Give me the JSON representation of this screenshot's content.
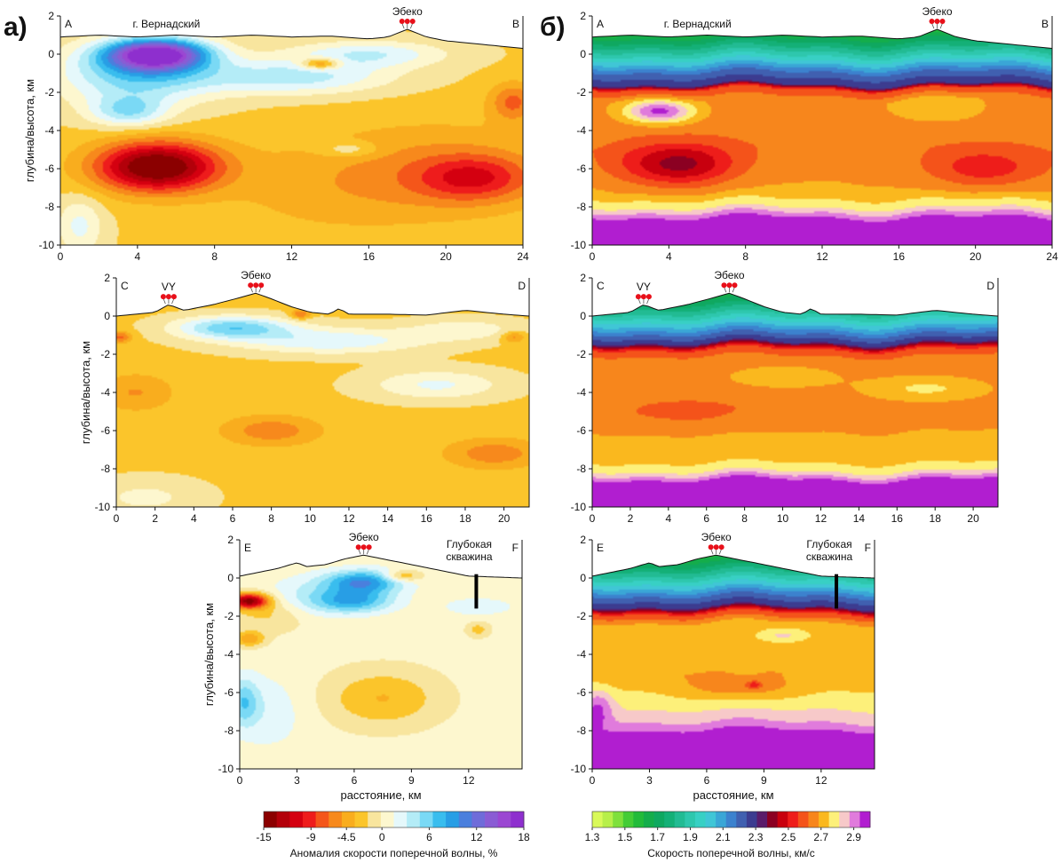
{
  "figure": {
    "panel_letters": [
      "а)",
      "б)"
    ],
    "place_labels": {
      "vernadsky": "г. Вернадский",
      "ebeko": "Эбеко",
      "vy": "VY",
      "deep_well": [
        "Глубокая",
        "скважина"
      ]
    },
    "ylabel": "глубина/высота, км",
    "xlabel": "расстояние, км"
  },
  "chart_data": [
    {
      "id": "a-AB",
      "type": "heatmap",
      "quantity": "anomaly",
      "corner_labels": [
        "A",
        "B"
      ],
      "xlim": [
        0,
        24
      ],
      "ylim": [
        -10,
        2
      ],
      "xticks": [
        0,
        4,
        8,
        12,
        16,
        20,
        24
      ],
      "yticks": [
        2,
        0,
        -2,
        -4,
        -6,
        -8,
        -10
      ],
      "ylabel": "глубина/высота, км",
      "xlabel": "",
      "places": [
        {
          "label": "г. Вернадский",
          "x": 5.5
        },
        {
          "label": "Эбеко",
          "x": 18
        }
      ],
      "topography": [
        [
          0,
          0.9
        ],
        [
          2,
          1.0
        ],
        [
          4,
          0.9
        ],
        [
          6,
          1.0
        ],
        [
          8,
          0.9
        ],
        [
          10,
          1.0
        ],
        [
          12,
          0.9
        ],
        [
          14,
          0.95
        ],
        [
          16,
          0.8
        ],
        [
          17,
          0.9
        ],
        [
          18,
          1.3
        ],
        [
          19,
          0.9
        ],
        [
          20,
          0.7
        ],
        [
          22,
          0.5
        ],
        [
          24,
          0.3
        ]
      ],
      "background": -2,
      "blobs": [
        {
          "x": 5,
          "y": -5.9,
          "sx": 3.2,
          "sy": 1.3,
          "v": -14
        },
        {
          "x": 21.5,
          "y": -6.5,
          "sx": 3,
          "sy": 1.2,
          "v": -6
        },
        {
          "x": 20,
          "y": -6,
          "sx": 6,
          "sy": 2.5,
          "v": -3
        },
        {
          "x": 14,
          "y": -7,
          "sx": 6,
          "sy": 2.5,
          "v": -2
        },
        {
          "x": 5,
          "y": 0,
          "sx": 2.6,
          "sy": 0.8,
          "v": 18
        },
        {
          "x": 4,
          "y": -1,
          "sx": 4,
          "sy": 1.6,
          "v": 8
        },
        {
          "x": 12,
          "y": -1.2,
          "sx": 5,
          "sy": 0.9,
          "v": 6
        },
        {
          "x": 16,
          "y": 0,
          "sx": 4,
          "sy": 0.7,
          "v": 5
        },
        {
          "x": 3.5,
          "y": -3,
          "sx": 2,
          "sy": 0.8,
          "v": 6
        },
        {
          "x": 13.5,
          "y": -0.5,
          "sx": 1,
          "sy": 0.3,
          "v": -7
        },
        {
          "x": 23.5,
          "y": -2.5,
          "sx": 1.2,
          "sy": 1,
          "v": -5
        },
        {
          "x": 15,
          "y": -5,
          "sx": 1.5,
          "sy": 0.4,
          "v": 3
        },
        {
          "x": 1,
          "y": -9,
          "sx": 1.2,
          "sy": 1.5,
          "v": 4
        }
      ]
    },
    {
      "id": "b-AB",
      "type": "heatmap",
      "quantity": "velocity",
      "corner_labels": [
        "A",
        "B"
      ],
      "xlim": [
        0,
        24
      ],
      "ylim": [
        -10,
        2
      ],
      "xticks": [
        0,
        4,
        8,
        12,
        16,
        20,
        24
      ],
      "yticks": [
        2,
        0,
        -2,
        -4,
        -6,
        -8,
        -10
      ],
      "ylabel": "",
      "xlabel": "",
      "places": [
        {
          "label": "г. Вернадский",
          "x": 5.5
        },
        {
          "label": "Эбеко",
          "x": 18
        }
      ],
      "topography": [
        [
          0,
          0.9
        ],
        [
          2,
          1.0
        ],
        [
          4,
          0.9
        ],
        [
          6,
          1.0
        ],
        [
          8,
          0.9
        ],
        [
          10,
          1.0
        ],
        [
          12,
          0.9
        ],
        [
          14,
          0.95
        ],
        [
          16,
          0.8
        ],
        [
          17,
          0.9
        ],
        [
          18,
          1.3
        ],
        [
          19,
          0.9
        ],
        [
          20,
          0.7
        ],
        [
          22,
          0.5
        ],
        [
          24,
          0.3
        ]
      ],
      "layers": [
        [
          1.5,
          1.5
        ],
        [
          0,
          1.9
        ],
        [
          -1,
          2.2
        ],
        [
          -1.6,
          2.3
        ],
        [
          -1.8,
          2.55
        ],
        [
          -2.4,
          2.66
        ],
        [
          -5,
          2.64
        ],
        [
          -7.2,
          2.7
        ],
        [
          -8,
          2.8
        ],
        [
          -8.6,
          2.95
        ],
        [
          -10,
          2.95
        ]
      ],
      "blobs": [
        {
          "x": 4.5,
          "y": -5.8,
          "sx": 3,
          "sy": 1.1,
          "v": -0.25
        },
        {
          "x": 20.5,
          "y": -6,
          "sx": 3,
          "sy": 1,
          "v": -0.15
        },
        {
          "x": 3.5,
          "y": -3,
          "sx": 1.8,
          "sy": 0.6,
          "v": 0.3
        },
        {
          "x": 18,
          "y": -2.8,
          "sx": 2.5,
          "sy": 0.8,
          "v": 0.08
        }
      ]
    },
    {
      "id": "a-CD",
      "type": "heatmap",
      "quantity": "anomaly",
      "corner_labels": [
        "C",
        "D"
      ],
      "xlim": [
        0,
        21.3
      ],
      "ylim": [
        -10,
        2
      ],
      "xticks": [
        0,
        2,
        4,
        6,
        8,
        10,
        12,
        14,
        16,
        18,
        20
      ],
      "yticks": [
        2,
        0,
        -2,
        -4,
        -6,
        -8,
        -10
      ],
      "ylabel": "глубина/высота, км",
      "xlabel": "",
      "places": [
        {
          "label": "VY",
          "x": 2.7
        },
        {
          "label": "Эбеко",
          "x": 7.2
        }
      ],
      "topography": [
        [
          0,
          0
        ],
        [
          1,
          0.1
        ],
        [
          2,
          0.2
        ],
        [
          2.7,
          0.6
        ],
        [
          3.5,
          0.3
        ],
        [
          5,
          0.6
        ],
        [
          6.5,
          1.0
        ],
        [
          7.2,
          1.2
        ],
        [
          8,
          0.9
        ],
        [
          9,
          0.5
        ],
        [
          10,
          0.2
        ],
        [
          11,
          0.1
        ],
        [
          11.5,
          0.4
        ],
        [
          12,
          0.1
        ],
        [
          14,
          0.1
        ],
        [
          16,
          0.05
        ],
        [
          18,
          0.3
        ],
        [
          20,
          0.1
        ],
        [
          21.3,
          0
        ]
      ],
      "background": -2.2,
      "blobs": [
        {
          "x": 6,
          "y": -0.6,
          "sx": 3,
          "sy": 0.6,
          "v": 8
        },
        {
          "x": 11,
          "y": -1.3,
          "sx": 5,
          "sy": 0.7,
          "v": 5
        },
        {
          "x": 18,
          "y": -0.7,
          "sx": 3,
          "sy": 0.6,
          "v": 3
        },
        {
          "x": 16.5,
          "y": -3.6,
          "sx": 3.5,
          "sy": 0.8,
          "v": 4
        },
        {
          "x": 8,
          "y": -6,
          "sx": 2.5,
          "sy": 0.8,
          "v": -4
        },
        {
          "x": 19.5,
          "y": -7.2,
          "sx": 2.5,
          "sy": 0.8,
          "v": -4
        },
        {
          "x": 1,
          "y": -4,
          "sx": 2,
          "sy": 1,
          "v": -3
        },
        {
          "x": 1.5,
          "y": -9.5,
          "sx": 3,
          "sy": 1,
          "v": 2.5
        },
        {
          "x": 0.2,
          "y": -1.1,
          "sx": 0.6,
          "sy": 0.3,
          "v": -5
        },
        {
          "x": 20.5,
          "y": -1.1,
          "sx": 0.6,
          "sy": 0.3,
          "v": -4
        },
        {
          "x": 9.5,
          "y": 0.1,
          "sx": 0.5,
          "sy": 0.25,
          "v": -5
        }
      ]
    },
    {
      "id": "b-CD",
      "type": "heatmap",
      "quantity": "velocity",
      "corner_labels": [
        "C",
        "D"
      ],
      "xlim": [
        0,
        21.3
      ],
      "ylim": [
        -10,
        2
      ],
      "xticks": [
        0,
        2,
        4,
        6,
        8,
        10,
        12,
        14,
        16,
        18,
        20
      ],
      "yticks": [
        2,
        0,
        -2,
        -4,
        -6,
        -8,
        -10
      ],
      "ylabel": "",
      "xlabel": "",
      "places": [
        {
          "label": "VY",
          "x": 2.7
        },
        {
          "label": "Эбеко",
          "x": 7.2
        }
      ],
      "topography": [
        [
          0,
          0
        ],
        [
          1,
          0.1
        ],
        [
          2,
          0.2
        ],
        [
          2.7,
          0.6
        ],
        [
          3.5,
          0.3
        ],
        [
          5,
          0.6
        ],
        [
          6.5,
          1.0
        ],
        [
          7.2,
          1.2
        ],
        [
          8,
          0.9
        ],
        [
          9,
          0.5
        ],
        [
          10,
          0.2
        ],
        [
          11,
          0.1
        ],
        [
          11.5,
          0.4
        ],
        [
          12,
          0.1
        ],
        [
          14,
          0.1
        ],
        [
          16,
          0.05
        ],
        [
          18,
          0.3
        ],
        [
          20,
          0.1
        ],
        [
          21.3,
          0
        ]
      ],
      "layers": [
        [
          1.5,
          1.5
        ],
        [
          0,
          1.9
        ],
        [
          -1,
          2.2
        ],
        [
          -1.4,
          2.3
        ],
        [
          -1.7,
          2.55
        ],
        [
          -2.3,
          2.66
        ],
        [
          -5,
          2.66
        ],
        [
          -7.5,
          2.72
        ],
        [
          -8.2,
          2.82
        ],
        [
          -8.6,
          2.95
        ],
        [
          -10,
          2.95
        ]
      ],
      "blobs": [
        {
          "x": 17.5,
          "y": -3.8,
          "sx": 3,
          "sy": 0.6,
          "v": 0.1
        },
        {
          "x": 10,
          "y": -3.2,
          "sx": 3,
          "sy": 0.6,
          "v": 0.06
        },
        {
          "x": 5,
          "y": -5,
          "sx": 4,
          "sy": 0.8,
          "v": -0.06
        }
      ]
    },
    {
      "id": "a-EF",
      "type": "heatmap",
      "quantity": "anomaly",
      "corner_labels": [
        "E",
        "F"
      ],
      "xlim": [
        0,
        14.8
      ],
      "ylim": [
        -10,
        2
      ],
      "xticks": [
        0,
        3,
        6,
        9,
        12
      ],
      "yticks": [
        2,
        0,
        -2,
        -4,
        -6,
        -8,
        -10
      ],
      "ylabel": "глубина/высота, км",
      "xlabel": "расстояние, км",
      "places": [
        {
          "label": "Эбеко",
          "x": 6.5
        }
      ],
      "well": {
        "x": 12.4,
        "top": 0.2,
        "bottom": -1.6
      },
      "topography": [
        [
          0,
          0.1
        ],
        [
          1,
          0.3
        ],
        [
          2,
          0.5
        ],
        [
          3,
          0.8
        ],
        [
          3.5,
          0.6
        ],
        [
          4.5,
          0.7
        ],
        [
          5.5,
          1.0
        ],
        [
          6.5,
          1.2
        ],
        [
          7.5,
          1.0
        ],
        [
          8.5,
          0.8
        ],
        [
          10,
          0.5
        ],
        [
          11,
          0.3
        ],
        [
          12,
          0.1
        ],
        [
          14.8,
          0
        ]
      ],
      "background": 0.5,
      "blobs": [
        {
          "x": 0.5,
          "y": -1.2,
          "sx": 1,
          "sy": 0.4,
          "v": -14
        },
        {
          "x": 1.5,
          "y": -1.8,
          "sx": 2,
          "sy": 1,
          "v": -3
        },
        {
          "x": 6.5,
          "y": -0.2,
          "sx": 2,
          "sy": 0.6,
          "v": 9
        },
        {
          "x": 6,
          "y": -1.2,
          "sx": 2,
          "sy": 0.6,
          "v": 7
        },
        {
          "x": 3.5,
          "y": -1,
          "sx": 2.5,
          "sy": 1,
          "v": 3
        },
        {
          "x": 7.5,
          "y": -6.3,
          "sx": 3,
          "sy": 1.5,
          "v": -4
        },
        {
          "x": 0.2,
          "y": -6.5,
          "sx": 0.8,
          "sy": 1.2,
          "v": 5
        },
        {
          "x": 1.5,
          "y": -7,
          "sx": 2,
          "sy": 2,
          "v": 2
        },
        {
          "x": 12.5,
          "y": -1.5,
          "sx": 2,
          "sy": 0.5,
          "v": 2
        },
        {
          "x": 8.5,
          "y": 0.1,
          "sx": 1,
          "sy": 0.3,
          "v": -5
        },
        {
          "x": 12.5,
          "y": -2.7,
          "sx": 0.6,
          "sy": 0.4,
          "v": -3
        },
        {
          "x": 0.5,
          "y": -3.2,
          "sx": 0.8,
          "sy": 0.4,
          "v": -5
        }
      ]
    },
    {
      "id": "b-EF",
      "type": "heatmap",
      "quantity": "velocity",
      "corner_labels": [
        "E",
        "F"
      ],
      "xlim": [
        0,
        14.8
      ],
      "ylim": [
        -10,
        2
      ],
      "xticks": [
        0,
        3,
        6,
        9,
        12
      ],
      "yticks": [
        2,
        0,
        -2,
        -4,
        -6,
        -8,
        -10
      ],
      "ylabel": "",
      "xlabel": "расстояние, км",
      "places": [
        {
          "label": "Эбеко",
          "x": 6.5
        }
      ],
      "well": {
        "x": 12.8,
        "top": 0.2,
        "bottom": -1.6
      },
      "topography": [
        [
          0,
          0.1
        ],
        [
          1,
          0.3
        ],
        [
          2,
          0.5
        ],
        [
          3,
          0.8
        ],
        [
          3.5,
          0.6
        ],
        [
          4.5,
          0.7
        ],
        [
          5.5,
          1.0
        ],
        [
          6.5,
          1.2
        ],
        [
          7.5,
          1.0
        ],
        [
          8.5,
          0.8
        ],
        [
          10,
          0.5
        ],
        [
          11,
          0.3
        ],
        [
          12,
          0.1
        ],
        [
          14.8,
          0
        ]
      ],
      "layers": [
        [
          1.5,
          1.5
        ],
        [
          0,
          1.9
        ],
        [
          -1,
          2.2
        ],
        [
          -1.5,
          2.3
        ],
        [
          -1.8,
          2.55
        ],
        [
          -2.4,
          2.7
        ],
        [
          -5,
          2.7
        ],
        [
          -7,
          2.82
        ],
        [
          -7.8,
          2.9
        ],
        [
          -8,
          2.95
        ],
        [
          -10,
          2.95
        ]
      ],
      "blobs": [
        {
          "x": 7.8,
          "y": -5.8,
          "sx": 3,
          "sy": 0.7,
          "v": -0.1
        },
        {
          "x": 8.5,
          "y": -5.6,
          "sx": 0.4,
          "sy": 0.2,
          "v": -0.15
        },
        {
          "x": 10,
          "y": -3,
          "sx": 1.5,
          "sy": 0.4,
          "v": 0.12
        },
        {
          "x": 0.3,
          "y": -6.8,
          "sx": 0.8,
          "sy": 1,
          "v": 0.15
        }
      ]
    }
  ],
  "colorbars": {
    "anomaly": {
      "title": "Аномалия скорости поперечной волны, %",
      "ticks": [
        "-15",
        "-9",
        "-4.5",
        "0",
        "6",
        "12",
        "18"
      ],
      "tick_values": [
        -15,
        -9,
        -4.5,
        0,
        6,
        12,
        18
      ],
      "range": [
        -15,
        18
      ],
      "colors": [
        "#8b0000",
        "#b3000a",
        "#d40010",
        "#ee1c1c",
        "#f4561a",
        "#f7891c",
        "#f9ad1e",
        "#fbc52b",
        "#f8e59e",
        "#fdf7cf",
        "#e5f8fb",
        "#b4ecf7",
        "#7ad9f5",
        "#39bdee",
        "#289ee5",
        "#4a7fdd",
        "#6f6cd9",
        "#8a5cd4",
        "#9b47d2",
        "#8e2fce"
      ]
    },
    "velocity": {
      "title": "Скорость поперечной волны, км/с",
      "ticks": [
        "1.3",
        "1.5",
        "1.7",
        "1.9",
        "2.1",
        "2.3",
        "2.5",
        "2.7",
        "2.9"
      ],
      "tick_values": [
        1.3,
        1.5,
        1.7,
        1.9,
        2.1,
        2.3,
        2.5,
        2.7,
        2.9
      ],
      "range": [
        1.3,
        3.0
      ],
      "colors": [
        "#d9f95a",
        "#b7ef4a",
        "#7fe03c",
        "#44cc36",
        "#22bb3a",
        "#14ad4b",
        "#0fa860",
        "#14b077",
        "#22bb93",
        "#2ec7ad",
        "#38d0c4",
        "#40c6d6",
        "#3aa6d6",
        "#3c82ce",
        "#4060b0",
        "#3c3c90",
        "#5a1c6a",
        "#8b0022",
        "#c8000e",
        "#ee1d1a",
        "#f4531a",
        "#f7861c",
        "#fab81e",
        "#fdf07a",
        "#f7c9c9",
        "#e07bdc",
        "#b11ed0"
      ]
    }
  }
}
